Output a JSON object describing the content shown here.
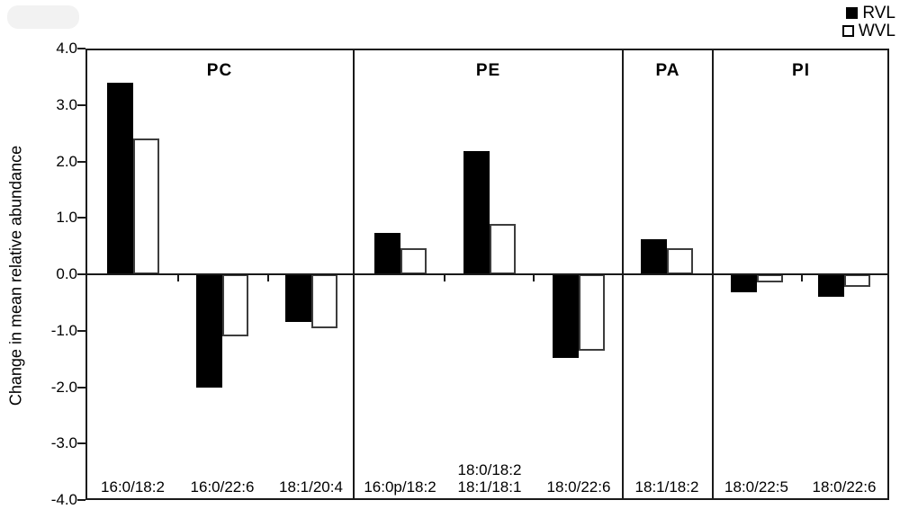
{
  "chart_data": {
    "type": "bar",
    "title": "",
    "ylabel": "Change in mean relative abundance",
    "ylim": [
      -4.0,
      4.0
    ],
    "ytick_step": 1.0,
    "ytick_labels": [
      "4.0",
      "3.0",
      "2.0",
      "1.0",
      "0.0",
      "-1.0",
      "-2.0",
      "-3.0",
      "-4.0"
    ],
    "grid": "off",
    "legend_position": "top-right",
    "legend": [
      {
        "name": "RVL",
        "fill": "#000000"
      },
      {
        "name": "WVL",
        "fill": "#ffffff"
      }
    ],
    "series_names": [
      "RVL",
      "WVL"
    ],
    "panels": [
      {
        "label": "PC",
        "groups": [
          {
            "category": "16:0/18:2",
            "RVL": 3.4,
            "WVL": 2.4
          },
          {
            "category": "16:0/22:6",
            "RVL": -2.0,
            "WVL": -1.1
          },
          {
            "category": "18:1/20:4",
            "RVL": -0.85,
            "WVL": -0.95
          }
        ]
      },
      {
        "label": "PE",
        "groups": [
          {
            "category": "16:0p/18:2",
            "RVL": 0.73,
            "WVL": 0.47
          },
          {
            "category": "18:0/18:2\n18:1/18:1",
            "RVL": 2.18,
            "WVL": 0.9
          },
          {
            "category": "18:0/22:6",
            "RVL": -1.48,
            "WVL": -1.35
          }
        ]
      },
      {
        "label": "PA",
        "groups": [
          {
            "category": "18:1/18:2",
            "RVL": 0.62,
            "WVL": 0.47
          }
        ]
      },
      {
        "label": "PI",
        "groups": [
          {
            "category": "18:0/22:5",
            "RVL": -0.32,
            "WVL": -0.15
          },
          {
            "category": "18:0/22:6",
            "RVL": -0.4,
            "WVL": -0.22
          }
        ]
      }
    ]
  }
}
